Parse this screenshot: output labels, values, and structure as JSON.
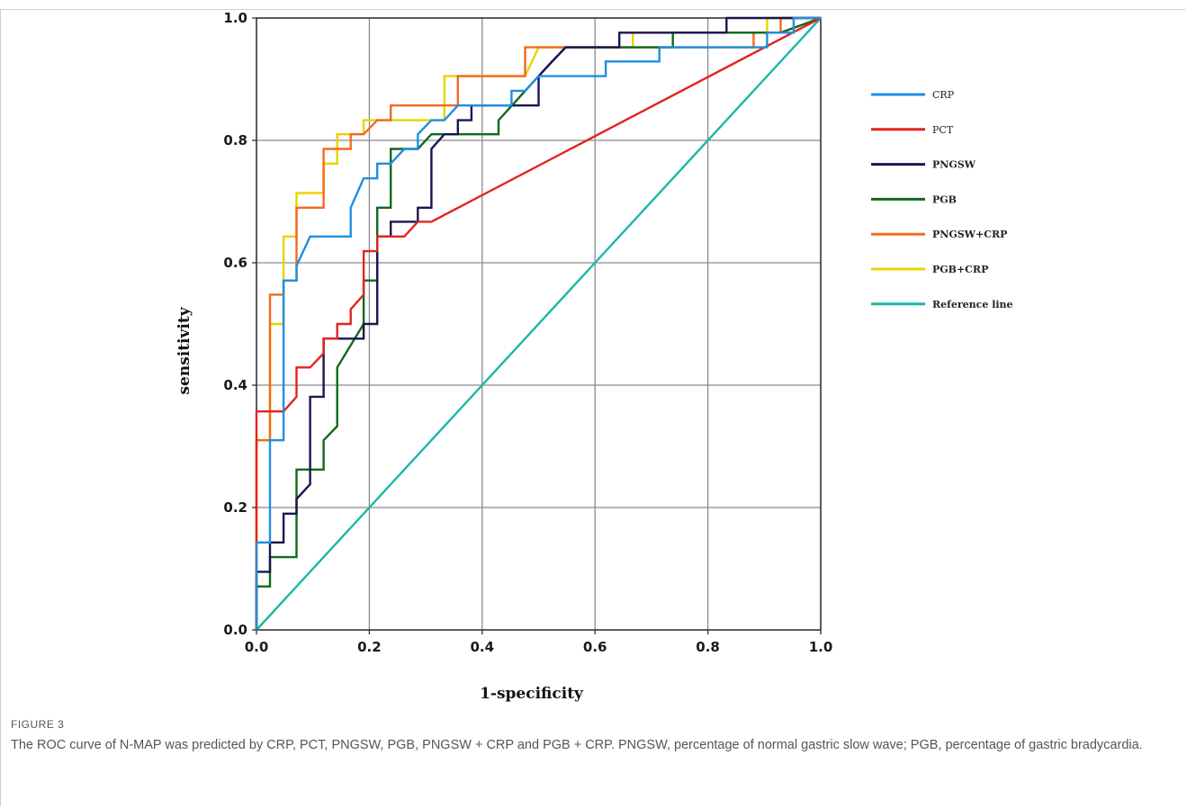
{
  "figure": {
    "label": "FIGURE 3",
    "caption": "The ROC curve of N-MAP was predicted by CRP, PCT, PNGSW, PGB, PNGSW + CRP and PGB + CRP. PNGSW, percentage of normal gastric slow wave; PGB, percentage of gastric bradycardia."
  },
  "chart_data": {
    "type": "line",
    "title": "",
    "xlabel": "1-specificity",
    "ylabel": "sensitivity",
    "xlim": [
      0,
      1
    ],
    "ylim": [
      0,
      1
    ],
    "xticks": [
      "0.0",
      "0.2",
      "0.4",
      "0.6",
      "0.8",
      "1.0"
    ],
    "yticks": [
      "0.0",
      "0.2",
      "0.4",
      "0.6",
      "0.8",
      "1.0"
    ],
    "grid": true,
    "legend_position": "right",
    "series": [
      {
        "name": "CRP",
        "color": "#1e8fe0",
        "points": [
          [
            0,
            0
          ],
          [
            0,
            0.143
          ],
          [
            0.024,
            0.143
          ],
          [
            0.024,
            0.31
          ],
          [
            0.048,
            0.31
          ],
          [
            0.048,
            0.571
          ],
          [
            0.071,
            0.571
          ],
          [
            0.071,
            0.595
          ],
          [
            0.095,
            0.643
          ],
          [
            0.167,
            0.643
          ],
          [
            0.167,
            0.69
          ],
          [
            0.19,
            0.738
          ],
          [
            0.214,
            0.738
          ],
          [
            0.214,
            0.762
          ],
          [
            0.238,
            0.762
          ],
          [
            0.262,
            0.786
          ],
          [
            0.286,
            0.786
          ],
          [
            0.286,
            0.81
          ],
          [
            0.31,
            0.833
          ],
          [
            0.333,
            0.833
          ],
          [
            0.357,
            0.857
          ],
          [
            0.452,
            0.857
          ],
          [
            0.452,
            0.881
          ],
          [
            0.476,
            0.881
          ],
          [
            0.5,
            0.905
          ],
          [
            0.619,
            0.905
          ],
          [
            0.619,
            0.929
          ],
          [
            0.714,
            0.929
          ],
          [
            0.714,
            0.952
          ],
          [
            0.905,
            0.952
          ],
          [
            0.905,
            0.976
          ],
          [
            0.952,
            0.976
          ],
          [
            0.952,
            1
          ],
          [
            1,
            1
          ]
        ]
      },
      {
        "name": "PCT",
        "color": "#e3231f",
        "points": [
          [
            0,
            0
          ],
          [
            0,
            0.357
          ],
          [
            0.048,
            0.357
          ],
          [
            0.071,
            0.381
          ],
          [
            0.071,
            0.429
          ],
          [
            0.095,
            0.429
          ],
          [
            0.119,
            0.452
          ],
          [
            0.119,
            0.476
          ],
          [
            0.143,
            0.476
          ],
          [
            0.143,
            0.5
          ],
          [
            0.167,
            0.5
          ],
          [
            0.167,
            0.524
          ],
          [
            0.19,
            0.548
          ],
          [
            0.19,
            0.619
          ],
          [
            0.214,
            0.619
          ],
          [
            0.214,
            0.643
          ],
          [
            0.262,
            0.643
          ],
          [
            0.286,
            0.667
          ],
          [
            0.31,
            0.667
          ],
          [
            1,
            1
          ]
        ]
      },
      {
        "name": "PNGSW",
        "color": "#1a1552",
        "points": [
          [
            0,
            0
          ],
          [
            0,
            0.095
          ],
          [
            0.024,
            0.095
          ],
          [
            0.024,
            0.143
          ],
          [
            0.048,
            0.143
          ],
          [
            0.048,
            0.19
          ],
          [
            0.071,
            0.19
          ],
          [
            0.071,
            0.214
          ],
          [
            0.095,
            0.238
          ],
          [
            0.095,
            0.381
          ],
          [
            0.119,
            0.381
          ],
          [
            0.119,
            0.476
          ],
          [
            0.19,
            0.476
          ],
          [
            0.19,
            0.5
          ],
          [
            0.214,
            0.5
          ],
          [
            0.214,
            0.643
          ],
          [
            0.238,
            0.643
          ],
          [
            0.238,
            0.667
          ],
          [
            0.286,
            0.667
          ],
          [
            0.286,
            0.69
          ],
          [
            0.31,
            0.69
          ],
          [
            0.31,
            0.786
          ],
          [
            0.333,
            0.81
          ],
          [
            0.357,
            0.81
          ],
          [
            0.357,
            0.833
          ],
          [
            0.381,
            0.833
          ],
          [
            0.381,
            0.857
          ],
          [
            0.452,
            0.857
          ],
          [
            0.476,
            0.857
          ],
          [
            0.5,
            0.857
          ],
          [
            0.5,
            0.905
          ],
          [
            0.524,
            0.929
          ],
          [
            0.548,
            0.952
          ],
          [
            0.643,
            0.952
          ],
          [
            0.643,
            0.976
          ],
          [
            0.833,
            0.976
          ],
          [
            0.833,
            1
          ],
          [
            1,
            1
          ]
        ]
      },
      {
        "name": "PGB",
        "color": "#0f6a1c",
        "points": [
          [
            0,
            0
          ],
          [
            0,
            0.071
          ],
          [
            0.024,
            0.071
          ],
          [
            0.024,
            0.119
          ],
          [
            0.071,
            0.119
          ],
          [
            0.071,
            0.262
          ],
          [
            0.119,
            0.262
          ],
          [
            0.119,
            0.31
          ],
          [
            0.143,
            0.333
          ],
          [
            0.143,
            0.429
          ],
          [
            0.19,
            0.5
          ],
          [
            0.19,
            0.571
          ],
          [
            0.214,
            0.571
          ],
          [
            0.214,
            0.69
          ],
          [
            0.238,
            0.69
          ],
          [
            0.238,
            0.786
          ],
          [
            0.286,
            0.786
          ],
          [
            0.31,
            0.81
          ],
          [
            0.429,
            0.81
          ],
          [
            0.429,
            0.833
          ],
          [
            0.5,
            0.905
          ],
          [
            0.524,
            0.929
          ],
          [
            0.548,
            0.952
          ],
          [
            0.738,
            0.952
          ],
          [
            0.738,
            0.976
          ],
          [
            0.929,
            0.976
          ],
          [
            1,
            1
          ]
        ]
      },
      {
        "name": "PNGSW+CRP",
        "color": "#f26a1e",
        "points": [
          [
            0,
            0
          ],
          [
            0,
            0.31
          ],
          [
            0.024,
            0.31
          ],
          [
            0.024,
            0.548
          ],
          [
            0.048,
            0.548
          ],
          [
            0.048,
            0.571
          ],
          [
            0.071,
            0.571
          ],
          [
            0.071,
            0.69
          ],
          [
            0.095,
            0.69
          ],
          [
            0.119,
            0.69
          ],
          [
            0.119,
            0.786
          ],
          [
            0.143,
            0.786
          ],
          [
            0.167,
            0.786
          ],
          [
            0.167,
            0.81
          ],
          [
            0.19,
            0.81
          ],
          [
            0.214,
            0.833
          ],
          [
            0.238,
            0.833
          ],
          [
            0.238,
            0.857
          ],
          [
            0.357,
            0.857
          ],
          [
            0.357,
            0.905
          ],
          [
            0.476,
            0.905
          ],
          [
            0.476,
            0.952
          ],
          [
            0.881,
            0.952
          ],
          [
            0.881,
            0.976
          ],
          [
            0.929,
            0.976
          ],
          [
            0.929,
            1
          ],
          [
            1,
            1
          ]
        ]
      },
      {
        "name": "PGB+CRP",
        "color": "#e8d400",
        "points": [
          [
            0,
            0
          ],
          [
            0,
            0.31
          ],
          [
            0.024,
            0.31
          ],
          [
            0.024,
            0.5
          ],
          [
            0.048,
            0.5
          ],
          [
            0.048,
            0.643
          ],
          [
            0.071,
            0.643
          ],
          [
            0.071,
            0.714
          ],
          [
            0.119,
            0.714
          ],
          [
            0.119,
            0.762
          ],
          [
            0.143,
            0.762
          ],
          [
            0.143,
            0.81
          ],
          [
            0.19,
            0.81
          ],
          [
            0.19,
            0.833
          ],
          [
            0.333,
            0.833
          ],
          [
            0.333,
            0.905
          ],
          [
            0.476,
            0.905
          ],
          [
            0.5,
            0.952
          ],
          [
            0.667,
            0.952
          ],
          [
            0.667,
            0.976
          ],
          [
            0.905,
            0.976
          ],
          [
            0.905,
            1
          ],
          [
            1,
            1
          ]
        ]
      },
      {
        "name": "Reference line",
        "color": "#1ab8a8",
        "points": [
          [
            0,
            0
          ],
          [
            1,
            1
          ]
        ]
      }
    ]
  }
}
